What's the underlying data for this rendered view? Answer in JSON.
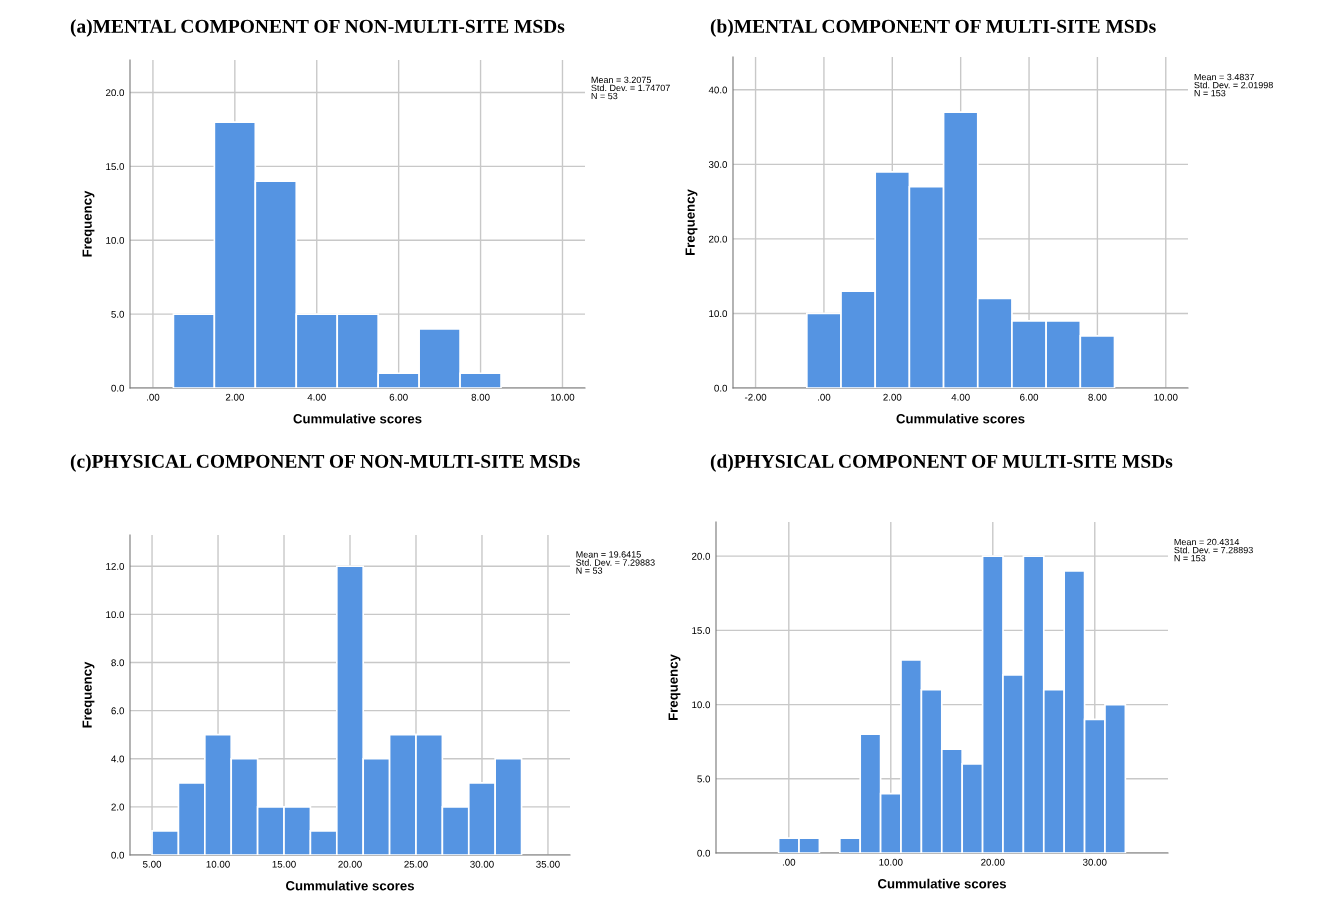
{
  "chart_data": [
    {
      "type": "histogram",
      "title": "(a)MENTAL COMPONENT OF NON-MULTI-SITE MSDs",
      "xlabel": "Cummulative scores",
      "ylabel": "Frequency",
      "color": "#5594e2",
      "bins": [
        0.5,
        1.5,
        2.5,
        3.5,
        4.5,
        5.5,
        6.5,
        7.5,
        8.5
      ],
      "values": [
        5,
        18,
        14,
        5,
        5,
        1,
        4,
        1
      ],
      "xlim": [
        -0.56,
        10.55
      ],
      "ylim": [
        0,
        22.2
      ],
      "xticks": [
        {
          "value": 0,
          "label": ".00"
        },
        {
          "value": 2,
          "label": "2.00"
        },
        {
          "value": 4,
          "label": "4.00"
        },
        {
          "value": 6,
          "label": "6.00"
        },
        {
          "value": 8,
          "label": "8.00"
        },
        {
          "value": 10,
          "label": "10.00"
        }
      ],
      "yticks": [
        {
          "value": 0,
          "label": "0.0"
        },
        {
          "value": 5,
          "label": "5.0"
        },
        {
          "value": 10,
          "label": "10.0"
        },
        {
          "value": 15,
          "label": "15.0"
        },
        {
          "value": 20,
          "label": "20.0"
        }
      ],
      "grid": true,
      "annotations": [
        "Mean = 3.2075\nStd. Dev. = 1.74707\nN = 53"
      ]
    },
    {
      "type": "histogram",
      "title": "(b)MENTAL COMPONENT OF MULTI-SITE MSDs",
      "xlabel": "Cummulative scores",
      "ylabel": "Frequency",
      "color": "#5594e2",
      "bins": [
        -0.5,
        0.5,
        1.5,
        2.5,
        3.5,
        4.5,
        5.5,
        6.5,
        7.5,
        8.5
      ],
      "values": [
        10,
        13,
        29,
        27,
        37,
        12,
        9,
        9,
        7
      ],
      "xlim": [
        -2.66,
        10.65
      ],
      "ylim": [
        0,
        44.4
      ],
      "xticks": [
        {
          "value": -2,
          "label": "-2.00"
        },
        {
          "value": 0,
          "label": ".00"
        },
        {
          "value": 2,
          "label": "2.00"
        },
        {
          "value": 4,
          "label": "4.00"
        },
        {
          "value": 6,
          "label": "6.00"
        },
        {
          "value": 8,
          "label": "8.00"
        },
        {
          "value": 10,
          "label": "10.00"
        }
      ],
      "yticks": [
        {
          "value": 0,
          "label": "0.0"
        },
        {
          "value": 10,
          "label": "10.0"
        },
        {
          "value": 20,
          "label": "20.0"
        },
        {
          "value": 30,
          "label": "30.0"
        },
        {
          "value": 40,
          "label": "40.0"
        }
      ],
      "grid": true,
      "annotations": [
        "Mean = 3.4837\nStd. Dev. = 2.01998\nN = 153"
      ]
    },
    {
      "type": "histogram",
      "title": "(c)PHYSICAL COMPONENT OF NON-MULTI-SITE MSDs",
      "xlabel": "Cummulative scores",
      "ylabel": "Frequency",
      "color": "#5594e2",
      "bins": [
        5,
        7,
        9,
        11,
        13,
        15,
        17,
        19,
        21,
        23,
        25,
        27,
        29,
        31,
        33
      ],
      "values": [
        1,
        3,
        5,
        4,
        2,
        2,
        1,
        12,
        4,
        5,
        5,
        2,
        3,
        4
      ],
      "xlim": [
        3.33,
        36.67
      ],
      "ylim": [
        0,
        13.3
      ],
      "xticks": [
        {
          "value": 5,
          "label": "5.00"
        },
        {
          "value": 10,
          "label": "10.00"
        },
        {
          "value": 15,
          "label": "15.00"
        },
        {
          "value": 20,
          "label": "20.00"
        },
        {
          "value": 25,
          "label": "25.00"
        },
        {
          "value": 30,
          "label": "30.00"
        },
        {
          "value": 35,
          "label": "35.00"
        }
      ],
      "yticks": [
        {
          "value": 0,
          "label": "0.0"
        },
        {
          "value": 2,
          "label": "2.0"
        },
        {
          "value": 4,
          "label": "4.0"
        },
        {
          "value": 6,
          "label": "6.0"
        },
        {
          "value": 8,
          "label": "8.0"
        },
        {
          "value": 10,
          "label": "10.0"
        },
        {
          "value": 12,
          "label": "12.0"
        }
      ],
      "grid": true,
      "annotations": [
        "Mean = 19.6415\nStd. Dev. = 7.29883\nN = 53"
      ]
    },
    {
      "type": "histogram",
      "title": "(d)PHYSICAL COMPONENT OF MULTI-SITE MSDs",
      "xlabel": "Cummulative scores",
      "ylabel": "Frequency",
      "color": "#5594e2",
      "bins": [
        -1,
        1,
        3,
        5,
        7,
        9,
        11,
        13,
        15,
        17,
        19,
        21,
        23,
        25,
        27,
        29,
        31,
        33
      ],
      "values": [
        1,
        1,
        0,
        1,
        8,
        4,
        13,
        11,
        7,
        6,
        20,
        12,
        20,
        11,
        19,
        9,
        10
      ],
      "xlim": [
        -7.14,
        37.18
      ],
      "ylim": [
        0,
        22.3
      ],
      "xticks": [
        {
          "value": 0,
          "label": ".00"
        },
        {
          "value": 10,
          "label": "10.00"
        },
        {
          "value": 20,
          "label": "20.00"
        },
        {
          "value": 30,
          "label": "30.00"
        }
      ],
      "yticks": [
        {
          "value": 0,
          "label": "0.0"
        },
        {
          "value": 5,
          "label": "5.0"
        },
        {
          "value": 10,
          "label": "10.0"
        },
        {
          "value": 15,
          "label": "15.0"
        },
        {
          "value": 20,
          "label": "20.0"
        }
      ],
      "grid": true,
      "annotations": [
        "Mean = 20.4314\nStd. Dev. = 7.28893\nN = 153"
      ]
    }
  ]
}
